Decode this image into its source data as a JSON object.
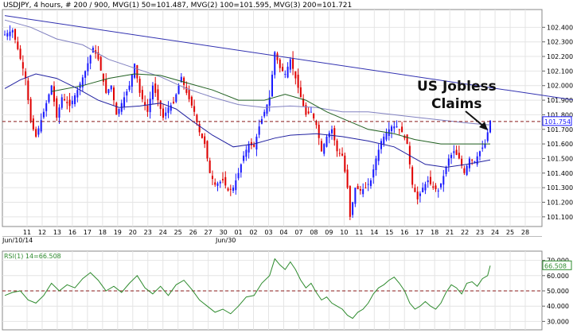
{
  "header": {
    "symbol": "USDJPY",
    "info": ", 4 hours, # 200 / 900, MVG(1) 50=101.487, MVG(2) 100=101.595, MVG(3) 200=101.721"
  },
  "colors": {
    "up_candle": "#1a1aff",
    "down_candle": "#e00000",
    "ma50": "#2020a0",
    "ma100": "#206020",
    "ma200": "#8080c0",
    "trendline": "#3030b0",
    "dashed": "#8b1a1a",
    "rsi_line": "#2e8b2e",
    "current_price_box": "#1a1aff"
  },
  "annotation": {
    "line1": "US Jobless",
    "line2": "Claims"
  },
  "date_labels": {
    "start": "Jun/10/14",
    "mid": "Jun/30"
  },
  "chart_data": [
    {
      "type": "candlestick",
      "ylim": [
        101.05,
        102.5
      ],
      "y_ticks": [
        "102.400",
        "102.300",
        "102.200",
        "102.100",
        "102.000",
        "101.900",
        "101.800",
        "101.700",
        "101.600",
        "101.500",
        "101.400",
        "101.300",
        "101.200",
        "101.100"
      ],
      "current_price": "101.754",
      "x_tick_labels": [
        "11",
        "12",
        "13",
        "16",
        "17",
        "18",
        "19",
        "20",
        "23",
        "24",
        "25",
        "26",
        "27",
        "30",
        "01",
        "02",
        "03",
        "04",
        "07",
        "08",
        "09",
        "10",
        "11",
        "14",
        "15",
        "16",
        "17",
        "18",
        "21",
        "22",
        "23",
        "24",
        "25",
        "28"
      ],
      "series": [
        {
          "name": "MVG(1) 50",
          "value": "101.487"
        },
        {
          "name": "MVG(2) 100",
          "value": "101.595"
        },
        {
          "name": "MVG(3) 200",
          "value": "101.721"
        }
      ],
      "price_path": [
        [
          0,
          102.35
        ],
        [
          3,
          102.38
        ],
        [
          5,
          102.25
        ],
        [
          8,
          102.05
        ],
        [
          10,
          101.75
        ],
        [
          12,
          101.65
        ],
        [
          15,
          101.82
        ],
        [
          18,
          102.0
        ],
        [
          20,
          101.78
        ],
        [
          22,
          101.92
        ],
        [
          25,
          101.86
        ],
        [
          28,
          101.97
        ],
        [
          31,
          102.1
        ],
        [
          34,
          102.26
        ],
        [
          36,
          102.18
        ],
        [
          39,
          101.95
        ],
        [
          41,
          102.0
        ],
        [
          43,
          101.8
        ],
        [
          45,
          101.88
        ],
        [
          48,
          102.0
        ],
        [
          50,
          102.15
        ],
        [
          52,
          101.95
        ],
        [
          55,
          101.82
        ],
        [
          57,
          102.0
        ],
        [
          59,
          101.9
        ],
        [
          61,
          101.78
        ],
        [
          63,
          101.85
        ],
        [
          65,
          101.88
        ],
        [
          68,
          102.06
        ],
        [
          70,
          101.95
        ],
        [
          73,
          101.82
        ],
        [
          75,
          101.68
        ],
        [
          77,
          101.6
        ],
        [
          79,
          101.4
        ],
        [
          81,
          101.32
        ],
        [
          84,
          101.35
        ],
        [
          86,
          101.28
        ],
        [
          88,
          101.3
        ],
        [
          90,
          101.4
        ],
        [
          92,
          101.52
        ],
        [
          94,
          101.6
        ],
        [
          96,
          101.58
        ],
        [
          98,
          101.72
        ],
        [
          100,
          101.82
        ],
        [
          102,
          101.92
        ],
        [
          104,
          102.23
        ],
        [
          106,
          102.12
        ],
        [
          108,
          102.08
        ],
        [
          110,
          102.18
        ],
        [
          112,
          102.05
        ],
        [
          114,
          101.92
        ],
        [
          116,
          101.8
        ],
        [
          118,
          101.82
        ],
        [
          120,
          101.73
        ],
        [
          122,
          101.55
        ],
        [
          124,
          101.65
        ],
        [
          126,
          101.7
        ],
        [
          128,
          101.55
        ],
        [
          130,
          101.52
        ],
        [
          132,
          101.3
        ],
        [
          133,
          101.1
        ],
        [
          135,
          101.3
        ],
        [
          137,
          101.28
        ],
        [
          139,
          101.3
        ],
        [
          141,
          101.35
        ],
        [
          143,
          101.5
        ],
        [
          145,
          101.62
        ],
        [
          147,
          101.68
        ],
        [
          149,
          101.72
        ],
        [
          151,
          101.72
        ],
        [
          153,
          101.68
        ],
        [
          155,
          101.6
        ],
        [
          157,
          101.32
        ],
        [
          159,
          101.22
        ],
        [
          161,
          101.3
        ],
        [
          163,
          101.35
        ],
        [
          165,
          101.3
        ],
        [
          167,
          101.28
        ],
        [
          169,
          101.38
        ],
        [
          171,
          101.5
        ],
        [
          173,
          101.55
        ],
        [
          175,
          101.5
        ],
        [
          177,
          101.4
        ],
        [
          179,
          101.5
        ],
        [
          181,
          101.48
        ],
        [
          183,
          101.55
        ],
        [
          185,
          101.6
        ],
        [
          187,
          101.76
        ]
      ],
      "ma50_path": [
        [
          0,
          101.98
        ],
        [
          6,
          102.04
        ],
        [
          12,
          102.08
        ],
        [
          20,
          102.05
        ],
        [
          28,
          101.98
        ],
        [
          36,
          101.9
        ],
        [
          44,
          101.85
        ],
        [
          52,
          101.86
        ],
        [
          60,
          101.88
        ],
        [
          66,
          101.84
        ],
        [
          72,
          101.76
        ],
        [
          80,
          101.66
        ],
        [
          88,
          101.58
        ],
        [
          96,
          101.6
        ],
        [
          104,
          101.64
        ],
        [
          110,
          101.66
        ],
        [
          120,
          101.67
        ],
        [
          130,
          101.65
        ],
        [
          140,
          101.62
        ],
        [
          150,
          101.58
        ],
        [
          156,
          101.52
        ],
        [
          162,
          101.46
        ],
        [
          170,
          101.44
        ],
        [
          178,
          101.46
        ],
        [
          187,
          101.49
        ]
      ],
      "ma100_path": [
        [
          18,
          101.96
        ],
        [
          30,
          102.0
        ],
        [
          40,
          102.05
        ],
        [
          50,
          102.08
        ],
        [
          60,
          102.07
        ],
        [
          70,
          102.02
        ],
        [
          80,
          101.97
        ],
        [
          90,
          101.9
        ],
        [
          100,
          101.9
        ],
        [
          108,
          101.94
        ],
        [
          116,
          101.9
        ],
        [
          124,
          101.82
        ],
        [
          132,
          101.76
        ],
        [
          140,
          101.7
        ],
        [
          150,
          101.67
        ],
        [
          158,
          101.63
        ],
        [
          168,
          101.6
        ],
        [
          178,
          101.6
        ],
        [
          187,
          101.6
        ]
      ],
      "ma200_path": [
        [
          0,
          102.45
        ],
        [
          10,
          102.4
        ],
        [
          20,
          102.32
        ],
        [
          30,
          102.28
        ],
        [
          40,
          102.18
        ],
        [
          50,
          102.12
        ],
        [
          60,
          102.06
        ],
        [
          70,
          101.98
        ],
        [
          80,
          101.92
        ],
        [
          90,
          101.87
        ],
        [
          100,
          101.85
        ],
        [
          110,
          101.86
        ],
        [
          120,
          101.85
        ],
        [
          130,
          101.82
        ],
        [
          140,
          101.82
        ],
        [
          150,
          101.8
        ],
        [
          160,
          101.78
        ],
        [
          170,
          101.76
        ],
        [
          180,
          101.74
        ],
        [
          187,
          101.73
        ]
      ],
      "trendline": [
        [
          0,
          102.48
        ],
        [
          250,
          101.82
        ]
      ]
    },
    {
      "type": "line",
      "label": "RSI(1) 14=66.508",
      "current_value": "66.508",
      "ylim": [
        25,
        75
      ],
      "y_ticks": [
        "70.000",
        "60.000",
        "50.000",
        "40.000",
        "30.000"
      ],
      "reference_line": 50,
      "values": [
        [
          0,
          47
        ],
        [
          3,
          49
        ],
        [
          6,
          50
        ],
        [
          9,
          44
        ],
        [
          12,
          42
        ],
        [
          15,
          47
        ],
        [
          18,
          55
        ],
        [
          21,
          50
        ],
        [
          24,
          54
        ],
        [
          27,
          52
        ],
        [
          30,
          58
        ],
        [
          33,
          62
        ],
        [
          36,
          57
        ],
        [
          39,
          50
        ],
        [
          42,
          53
        ],
        [
          45,
          49
        ],
        [
          48,
          55
        ],
        [
          51,
          60
        ],
        [
          54,
          52
        ],
        [
          57,
          48
        ],
        [
          60,
          53
        ],
        [
          63,
          47
        ],
        [
          66,
          54
        ],
        [
          69,
          57
        ],
        [
          72,
          51
        ],
        [
          75,
          44
        ],
        [
          78,
          40
        ],
        [
          81,
          36
        ],
        [
          84,
          38
        ],
        [
          87,
          35
        ],
        [
          90,
          40
        ],
        [
          93,
          46
        ],
        [
          96,
          47
        ],
        [
          99,
          55
        ],
        [
          102,
          60
        ],
        [
          104,
          71
        ],
        [
          106,
          67
        ],
        [
          108,
          64
        ],
        [
          110,
          69
        ],
        [
          112,
          64
        ],
        [
          114,
          57
        ],
        [
          116,
          52
        ],
        [
          118,
          55
        ],
        [
          120,
          49
        ],
        [
          122,
          44
        ],
        [
          124,
          46
        ],
        [
          126,
          42
        ],
        [
          128,
          40
        ],
        [
          130,
          38
        ],
        [
          132,
          34
        ],
        [
          134,
          32
        ],
        [
          136,
          36
        ],
        [
          138,
          38
        ],
        [
          140,
          42
        ],
        [
          142,
          48
        ],
        [
          144,
          52
        ],
        [
          146,
          54
        ],
        [
          148,
          57
        ],
        [
          150,
          59
        ],
        [
          152,
          55
        ],
        [
          154,
          50
        ],
        [
          156,
          42
        ],
        [
          158,
          38
        ],
        [
          160,
          40
        ],
        [
          162,
          43
        ],
        [
          164,
          40
        ],
        [
          166,
          38
        ],
        [
          168,
          42
        ],
        [
          170,
          49
        ],
        [
          172,
          54
        ],
        [
          174,
          52
        ],
        [
          176,
          48
        ],
        [
          178,
          55
        ],
        [
          180,
          56
        ],
        [
          182,
          53
        ],
        [
          184,
          58
        ],
        [
          186,
          60
        ],
        [
          187,
          66.5
        ]
      ]
    }
  ]
}
